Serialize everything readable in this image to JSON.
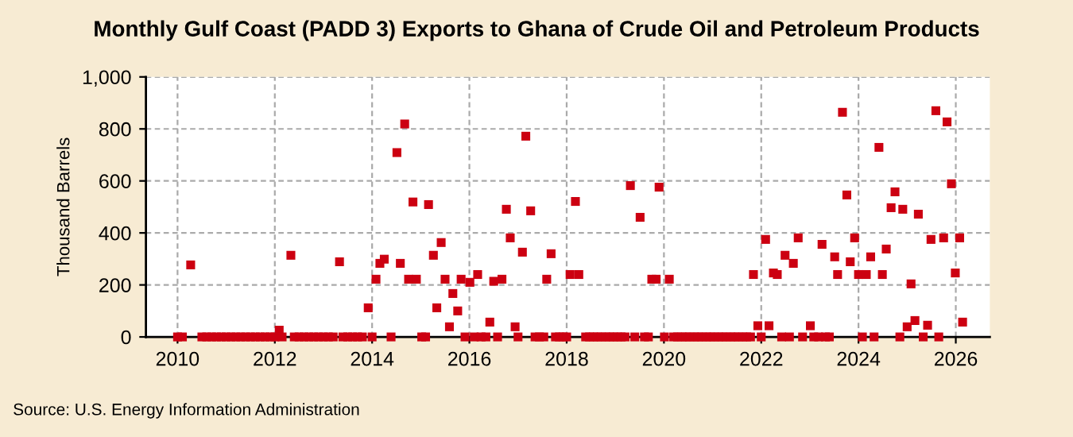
{
  "chart_data": {
    "type": "scatter",
    "title": "Monthly Gulf Coast (PADD 3) Exports to Ghana of Crude Oil and Petroleum Products",
    "ylabel": "Thousand Barrels",
    "annotations": [
      "Source: U.S. Energy Information Administration"
    ],
    "series": [
      {
        "color": "#cc0011",
        "x": [
          2010.0,
          2010.1,
          2010.27,
          2010.5,
          2010.6,
          2010.7,
          2010.8,
          2010.9,
          2011.0,
          2011.1,
          2011.2,
          2011.3,
          2011.4,
          2011.5,
          2011.6,
          2011.7,
          2011.8,
          2011.9,
          2012.0,
          2012.09,
          2012.15,
          2012.33,
          2012.4,
          2012.5,
          2012.6,
          2012.7,
          2012.8,
          2012.9,
          2013.0,
          2013.1,
          2013.2,
          2013.33,
          2013.4,
          2013.5,
          2013.6,
          2013.7,
          2013.8,
          2013.92,
          2014.0,
          2014.08,
          2014.16,
          2014.25,
          2014.39,
          2014.51,
          2014.58,
          2014.67,
          2014.75,
          2014.84,
          2014.91,
          2015.02,
          2015.1,
          2015.16,
          2015.26,
          2015.33,
          2015.42,
          2015.5,
          2015.59,
          2015.66,
          2015.76,
          2015.83,
          2015.91,
          2016.01,
          2016.1,
          2016.17,
          2016.24,
          2016.34,
          2016.42,
          2016.5,
          2016.58,
          2016.67,
          2016.76,
          2016.84,
          2016.94,
          2017.0,
          2017.09,
          2017.16,
          2017.26,
          2017.35,
          2017.44,
          2017.53,
          2017.59,
          2017.68,
          2017.77,
          2017.85,
          2017.93,
          2018.0,
          2018.07,
          2018.18,
          2018.25,
          2018.39,
          2018.47,
          2018.55,
          2018.63,
          2018.71,
          2018.8,
          2018.88,
          2018.96,
          2019.04,
          2019.12,
          2019.2,
          2019.31,
          2019.4,
          2019.51,
          2019.6,
          2019.68,
          2019.75,
          2019.84,
          2019.9,
          2020.01,
          2020.11,
          2020.2,
          2020.28,
          2020.37,
          2020.45,
          2020.53,
          2020.62,
          2020.7,
          2020.78,
          2020.87,
          2020.95,
          2021.03,
          2021.12,
          2021.2,
          2021.28,
          2021.37,
          2021.45,
          2021.53,
          2021.62,
          2021.7,
          2021.78,
          2021.84,
          2021.93,
          2022.0,
          2022.09,
          2022.16,
          2022.25,
          2022.33,
          2022.42,
          2022.49,
          2022.58,
          2022.66,
          2022.76,
          2022.85,
          2023.01,
          2023.08,
          2023.18,
          2023.25,
          2023.32,
          2023.4,
          2023.51,
          2023.57,
          2023.67,
          2023.76,
          2023.83,
          2023.92,
          2024.0,
          2024.08,
          2024.16,
          2024.25,
          2024.32,
          2024.42,
          2024.49,
          2024.57,
          2024.67,
          2024.75,
          2024.85,
          2024.91,
          2025.0,
          2025.08,
          2025.16,
          2025.23,
          2025.33,
          2025.42,
          2025.49,
          2025.59,
          2025.65,
          2025.75,
          2025.82,
          2025.91,
          2025.99,
          2026.08,
          2026.14
        ],
        "values": [
          0,
          0,
          277,
          0,
          0,
          0,
          0,
          0,
          0,
          0,
          0,
          0,
          0,
          0,
          0,
          0,
          0,
          0,
          0,
          26,
          0,
          314,
          0,
          0,
          0,
          0,
          0,
          0,
          0,
          0,
          0,
          289,
          0,
          0,
          0,
          0,
          0,
          112,
          0,
          222,
          283,
          299,
          0,
          709,
          283,
          819,
          222,
          519,
          222,
          0,
          0,
          509,
          314,
          112,
          363,
          222,
          39,
          167,
          100,
          222,
          0,
          210,
          0,
          240,
          0,
          0,
          57,
          214,
          0,
          222,
          491,
          381,
          39,
          0,
          326,
          772,
          485,
          0,
          0,
          0,
          222,
          320,
          0,
          0,
          0,
          0,
          240,
          521,
          240,
          0,
          0,
          0,
          0,
          0,
          0,
          0,
          0,
          0,
          0,
          0,
          582,
          0,
          460,
          0,
          0,
          222,
          222,
          576,
          0,
          222,
          0,
          0,
          0,
          0,
          0,
          0,
          0,
          0,
          0,
          0,
          0,
          0,
          0,
          0,
          0,
          0,
          0,
          0,
          0,
          0,
          240,
          43,
          0,
          375,
          43,
          246,
          240,
          0,
          314,
          0,
          283,
          381,
          0,
          43,
          0,
          0,
          356,
          0,
          0,
          308,
          240,
          864,
          546,
          289,
          381,
          240,
          0,
          240,
          308,
          0,
          729,
          240,
          338,
          497,
          558,
          0,
          491,
          39,
          204,
          63,
          472,
          0,
          45,
          375,
          870,
          0,
          381,
          827,
          589,
          246,
          381,
          57
        ]
      }
    ],
    "xlim": [
      2009.35,
      2026.7
    ],
    "xticks": [
      2010,
      2012,
      2014,
      2016,
      2018,
      2020,
      2022,
      2024,
      2026
    ],
    "ylim": [
      0,
      1000
    ],
    "yticks": [
      0,
      200,
      400,
      600,
      800,
      {
        "value": 1000,
        "label": "1,000"
      }
    ],
    "grid": true,
    "marker": "square",
    "legend": false
  }
}
